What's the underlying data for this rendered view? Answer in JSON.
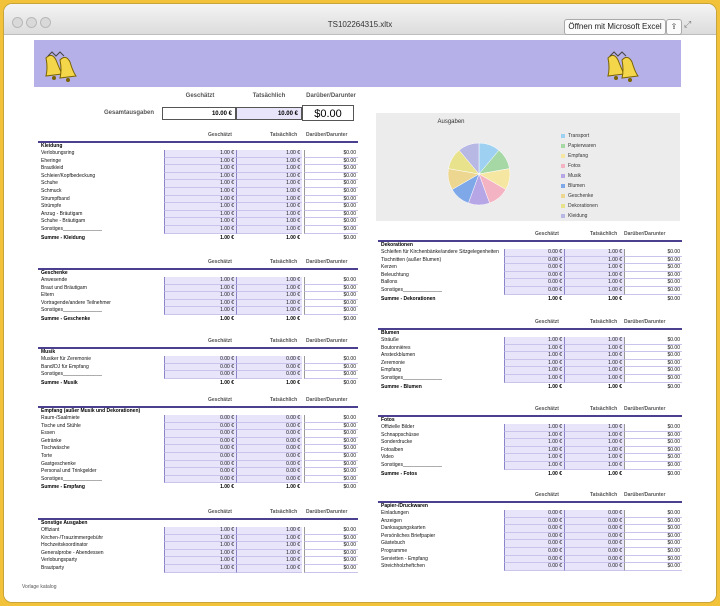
{
  "window": {
    "title": "TS102264315.xltx",
    "open_button": "Öffnen mit Microsoft Excel"
  },
  "watermark": "Vorlage katalog",
  "summary": {
    "headers": [
      "Geschätzt",
      "Tatsächlich",
      "Darüber/Darunter"
    ],
    "label": "Gesamtausgaben",
    "est": "10.00 €",
    "act": "10.00 €",
    "diff": "$0.00"
  },
  "chart_data": {
    "type": "pie",
    "title": "Ausgaben",
    "categories": [
      "Transport",
      "Papierwaren",
      "Empfang",
      "Fotos",
      "Musik",
      "Blumen",
      "Geschenke",
      "Dekorationen",
      "Kleidung"
    ],
    "values": [
      1,
      1,
      1,
      1,
      1,
      1,
      1,
      1,
      1
    ],
    "colors": [
      "#9ed0f2",
      "#a6d8a6",
      "#f5e7a2",
      "#f4b3c2",
      "#b6a6e6",
      "#7fa8e8",
      "#ecd690",
      "#e9e28c",
      "#b8b8e4"
    ],
    "legend": "right"
  },
  "col_headers": [
    "Geschätzt",
    "Tatsächlich",
    "Darüber/Darunter"
  ],
  "left_sections": [
    {
      "title": "Kleidung",
      "rows": [
        "Verlobungsring",
        "Eheringe",
        "Brautkleid",
        "Schleier/Kopfbedeckung",
        "Schuhe",
        "Schmuck",
        "Strumpfband",
        "Strümpfe",
        "Anzug - Bräutigam",
        "Schuhe - Bräutigam",
        "Sonstiges______________"
      ],
      "est": "1.00 €",
      "act": "1.00 €",
      "diff": "$0.00",
      "sum_label": "Summe - Kleidung",
      "sum_est": "1.00 €",
      "sum_act": "1.00 €",
      "sum_diff": "$0.00"
    },
    {
      "title": "Geschenke",
      "rows": [
        "Anwesende",
        "Braut und Bräutigam",
        "Eltern",
        "Vortragende/andere Teilnehmer",
        "Sonstiges______________"
      ],
      "est": "1.00 €",
      "act": "1.00 €",
      "diff": "$0.00",
      "sum_label": "Summe - Geschenke",
      "sum_est": "1.00 €",
      "sum_act": "1.00 €",
      "sum_diff": "$0.00"
    },
    {
      "title": "Musik",
      "rows": [
        "Musiker für Zeremonie",
        "Band/DJ für Empfang",
        "Sonstiges______________"
      ],
      "est": "0.00 €",
      "act": "0.00 €",
      "diff": "$0.00",
      "sum_label": "Summe - Musik",
      "sum_est": "1.00 €",
      "sum_act": "1.00 €",
      "sum_diff": "$0.00"
    },
    {
      "title": "Empfang (außer Musik und Dekorationen)",
      "rows": [
        "Raum-/Saalmiete",
        "Tische und Stühle",
        "Essen",
        "Getränke",
        "Tischwäsche",
        "Torte",
        "Gastgeschenke",
        "Personal und Trinkgelder",
        "Sonstiges______________"
      ],
      "est": "0.00 €",
      "act": "0.00 €",
      "diff": "$0.00",
      "sum_label": "Summe - Empfang",
      "sum_est": "1.00 €",
      "sum_act": "1.00 €",
      "sum_diff": "$0.00"
    },
    {
      "title": "Sonstige Ausgaben",
      "rows": [
        "Offiziant",
        "Kirchen-/Trauzimmergebühr",
        "Hochzeitskoordinator",
        "Generalprobe - Abendessen",
        "Verlobungsparty",
        "Brautparty"
      ],
      "est": "1.00 €",
      "act": "1.00 €",
      "diff": "$0.00",
      "sum_label": "",
      "sum_est": "",
      "sum_act": "",
      "sum_diff": ""
    }
  ],
  "right_sections": [
    {
      "title": "Dekorationen",
      "rows": [
        "Schleifen für Kirchenbänke/andere Sitzgelegenheiten",
        "Tischnitten (außer Blumen)",
        "Kerzen",
        "Beleuchtung",
        "Ballons",
        "Sonstiges______________"
      ],
      "est": "0.00 €",
      "act": "1.00 €",
      "diff": "$0.00",
      "sum_label": "Summe - Dekorationen",
      "sum_est": "1.00 €",
      "sum_act": "1.00 €",
      "sum_diff": "$0.00"
    },
    {
      "title": "Blumen",
      "rows": [
        "Sträuße",
        "Boutonnières",
        "Ansteckblumen",
        "Zeremonie",
        "Empfang",
        "Sonstiges______________"
      ],
      "est": "1.00 €",
      "act": "1.00 €",
      "diff": "$0.00",
      "sum_label": "Summe - Blumen",
      "sum_est": "1.00 €",
      "sum_act": "1.00 €",
      "sum_diff": "$0.00"
    },
    {
      "title": "Fotos",
      "rows": [
        "Offizielle Bilder",
        "Schnappschüsse",
        "Sonderdrucke",
        "Fotoalben",
        "Video",
        "Sonstiges______________"
      ],
      "est": "1.00 €",
      "act": "1.00 €",
      "diff": "$0.00",
      "sum_label": "Summe - Fotos",
      "sum_est": "1.00 €",
      "sum_act": "1.00 €",
      "sum_diff": "$0.00"
    },
    {
      "title": "Papier-/Druckwaren",
      "rows": [
        "Einladungen",
        "Anzeigen",
        "Danksagungskarten",
        "Persönliches Briefpapier",
        "Gästebuch",
        "Programme",
        "Servietten - Empfang",
        "Streichholzheftchen"
      ],
      "est": "0.00 €",
      "act": "0.00 €",
      "diff": "$0.00",
      "sum_label": "",
      "sum_est": "",
      "sum_act": "",
      "sum_diff": ""
    }
  ]
}
